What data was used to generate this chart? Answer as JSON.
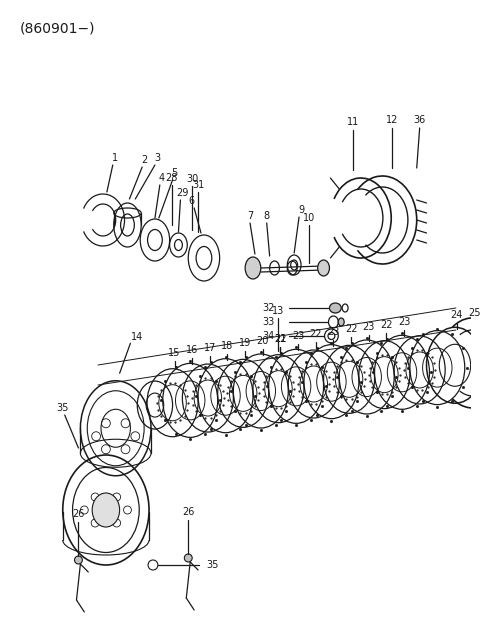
{
  "title": "(860901−)",
  "background_color": "#ffffff",
  "text_color": "#1a1a1a",
  "fig_width": 4.8,
  "fig_height": 6.24,
  "dpi": 100
}
